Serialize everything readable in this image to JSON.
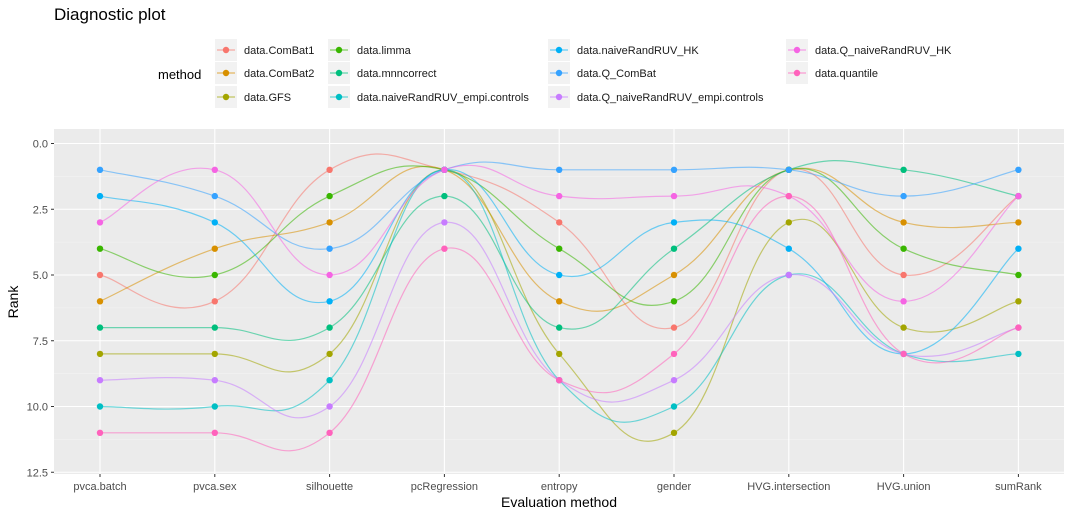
{
  "chart_data": {
    "type": "line",
    "title": "Diagnostic plot",
    "xlabel": "Evaluation method",
    "ylabel": "Rank",
    "y_reversed": true,
    "ylim": [
      0,
      12.5
    ],
    "yticks": [
      "0.0",
      "2.5",
      "5.0",
      "7.5",
      "10.0",
      "12.5"
    ],
    "ytick_values": [
      0,
      2.5,
      5,
      7.5,
      10,
      12.5
    ],
    "categories": [
      "pvca.batch",
      "pvca.sex",
      "silhouette",
      "pcRegression",
      "entropy",
      "gender",
      "HVG.intersection",
      "HVG.union",
      "sumRank"
    ],
    "legend_title": "method",
    "legend_position": "top",
    "grid": true,
    "series": [
      {
        "name": "data.ComBat1",
        "color": "#F8766D",
        "values": [
          5,
          6,
          1,
          1,
          3,
          7,
          1,
          5,
          2
        ]
      },
      {
        "name": "data.ComBat2",
        "color": "#D89000",
        "values": [
          6,
          4,
          3,
          1,
          6,
          5,
          1,
          3,
          3
        ]
      },
      {
        "name": "data.GFS",
        "color": "#A3A500",
        "values": [
          8,
          8,
          8,
          1,
          8,
          11,
          3,
          7,
          6
        ]
      },
      {
        "name": "data.limma",
        "color": "#39B600",
        "values": [
          4,
          5,
          2,
          1,
          4,
          6,
          1,
          4,
          5
        ]
      },
      {
        "name": "data.mnncorrect",
        "color": "#00BF7D",
        "values": [
          7,
          7,
          7,
          2,
          7,
          4,
          1,
          1,
          2
        ]
      },
      {
        "name": "data.naiveRandRUV_empi.controls",
        "color": "#00BFC4",
        "values": [
          10,
          10,
          9,
          1,
          9,
          10,
          5,
          8,
          8
        ]
      },
      {
        "name": "data.naiveRandRUV_HK",
        "color": "#00B0F6",
        "values": [
          2,
          3,
          6,
          1,
          5,
          3,
          4,
          8,
          4
        ]
      },
      {
        "name": "data.Q_ComBat",
        "color": "#35A2FF",
        "values": [
          1,
          2,
          4,
          1,
          1,
          1,
          1,
          2,
          1
        ]
      },
      {
        "name": "data.Q_naiveRandRUV_empi.controls",
        "color": "#C77CFF",
        "values": [
          9,
          9,
          10,
          3,
          9,
          9,
          5,
          8,
          7
        ]
      },
      {
        "name": "data.Q_naiveRandRUV_HK",
        "color": "#F564E3",
        "values": [
          3,
          1,
          5,
          1,
          2,
          2,
          2,
          6,
          2
        ]
      },
      {
        "name": "data.quantile",
        "color": "#FF62BC",
        "values": [
          11,
          11,
          11,
          4,
          9,
          8,
          2,
          8,
          7
        ]
      }
    ]
  }
}
